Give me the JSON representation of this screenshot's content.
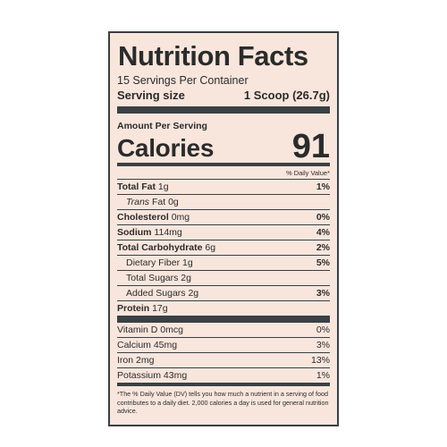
{
  "title": "Nutrition Facts",
  "servings_per_container": "15 Servings Per Container",
  "serving_size": {
    "label": "Serving size",
    "value": "1 Scoop (26.7g)"
  },
  "amount_per_serving": "Amount Per Serving",
  "calories": {
    "label": "Calories",
    "value": "91"
  },
  "dv_header": "% Daily Value*",
  "nutrients": [
    {
      "name": "Total Fat",
      "amount": "1g",
      "dv": "1%"
    },
    {
      "name": "Trans",
      "suffix": " Fat 0g",
      "dv": ""
    },
    {
      "name": "Cholesterol",
      "amount": "0mg",
      "dv": "0%"
    },
    {
      "name": "Sodium",
      "amount": "114mg",
      "dv": "4%"
    },
    {
      "name": "Total Carbohydrate",
      "amount": "6g",
      "dv": "2%"
    },
    {
      "name": "Dietary Fiber 1g",
      "dv": "5%"
    },
    {
      "name": "Total Sugars 2g",
      "dv": ""
    },
    {
      "name": "Added Sugars 2g",
      "dv": "3%"
    },
    {
      "name": "Protein",
      "amount": "17g",
      "dv": ""
    }
  ],
  "vitamins": [
    {
      "name": "Vitamin D 0mcg",
      "dv": "0%"
    },
    {
      "name": "Calcium 45mg",
      "dv": "3%"
    },
    {
      "name": "Iron 2mg",
      "dv": "13%"
    },
    {
      "name": "Potassium 43mg",
      "dv": "1%"
    }
  ],
  "footnote": "*The % Daily Value (DV) tells you how much a nutrient in a serving of food contributes to a daily diet. 2,000 calories a day is used for general nutrition advice.",
  "colors": {
    "label_bg": "#f8e6dd",
    "rule": "#3a4044",
    "text": "#2b2b2b"
  }
}
